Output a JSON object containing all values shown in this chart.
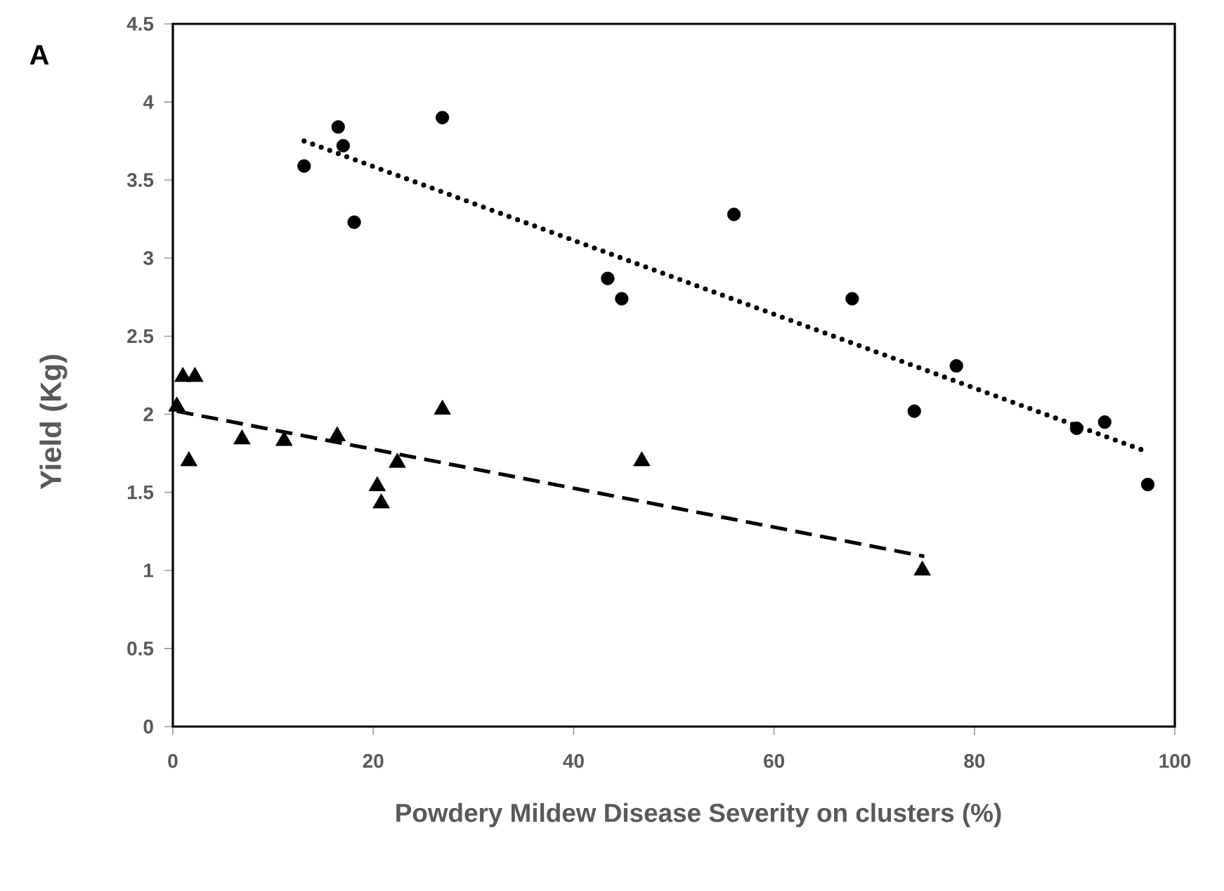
{
  "chart_data": {
    "type": "scatter",
    "title": "A",
    "xlabel": "Powdery Mildew Disease Severity on clusters (%)",
    "ylabel": "Yield (Kg)",
    "xlim": [
      0,
      100
    ],
    "xticks": [
      0,
      20,
      40,
      60,
      80,
      100
    ],
    "ylim": [
      0,
      4.5
    ],
    "yticks": [
      0,
      0.5,
      1,
      1.5,
      2,
      2.5,
      3,
      3.5,
      4,
      4.5
    ],
    "series": [
      {
        "marker": "circle",
        "color": "#000000",
        "x": [
          13.1,
          16.5,
          17.0,
          18.1,
          26.9,
          43.4,
          44.8,
          56.0,
          67.8,
          74.0,
          78.2,
          90.2,
          93.0,
          97.3
        ],
        "values": [
          3.59,
          3.84,
          3.72,
          3.23,
          3.9,
          2.87,
          2.74,
          3.28,
          2.74,
          2.02,
          2.31,
          1.91,
          1.95,
          1.55
        ]
      },
      {
        "type": "line",
        "marker": "none",
        "line_style": "dotted",
        "color": "#000000",
        "x": [
          13.1,
          96.8
        ],
        "values": [
          3.75,
          1.77
        ]
      },
      {
        "marker": "triangle",
        "color": "#000000",
        "x": [
          1.0,
          2.2,
          0.4,
          1.6,
          6.9,
          11.1,
          16.4,
          26.9,
          22.4,
          20.4,
          20.8,
          46.8,
          74.8
        ],
        "values": [
          2.24,
          2.24,
          2.05,
          1.7,
          1.84,
          1.83,
          1.86,
          2.03,
          1.69,
          1.54,
          1.43,
          1.7,
          1.0
        ]
      },
      {
        "type": "line",
        "marker": "none",
        "line_style": "dashed",
        "color": "#000000",
        "x": [
          0.4,
          75.0
        ],
        "values": [
          2.02,
          1.09
        ]
      }
    ]
  }
}
